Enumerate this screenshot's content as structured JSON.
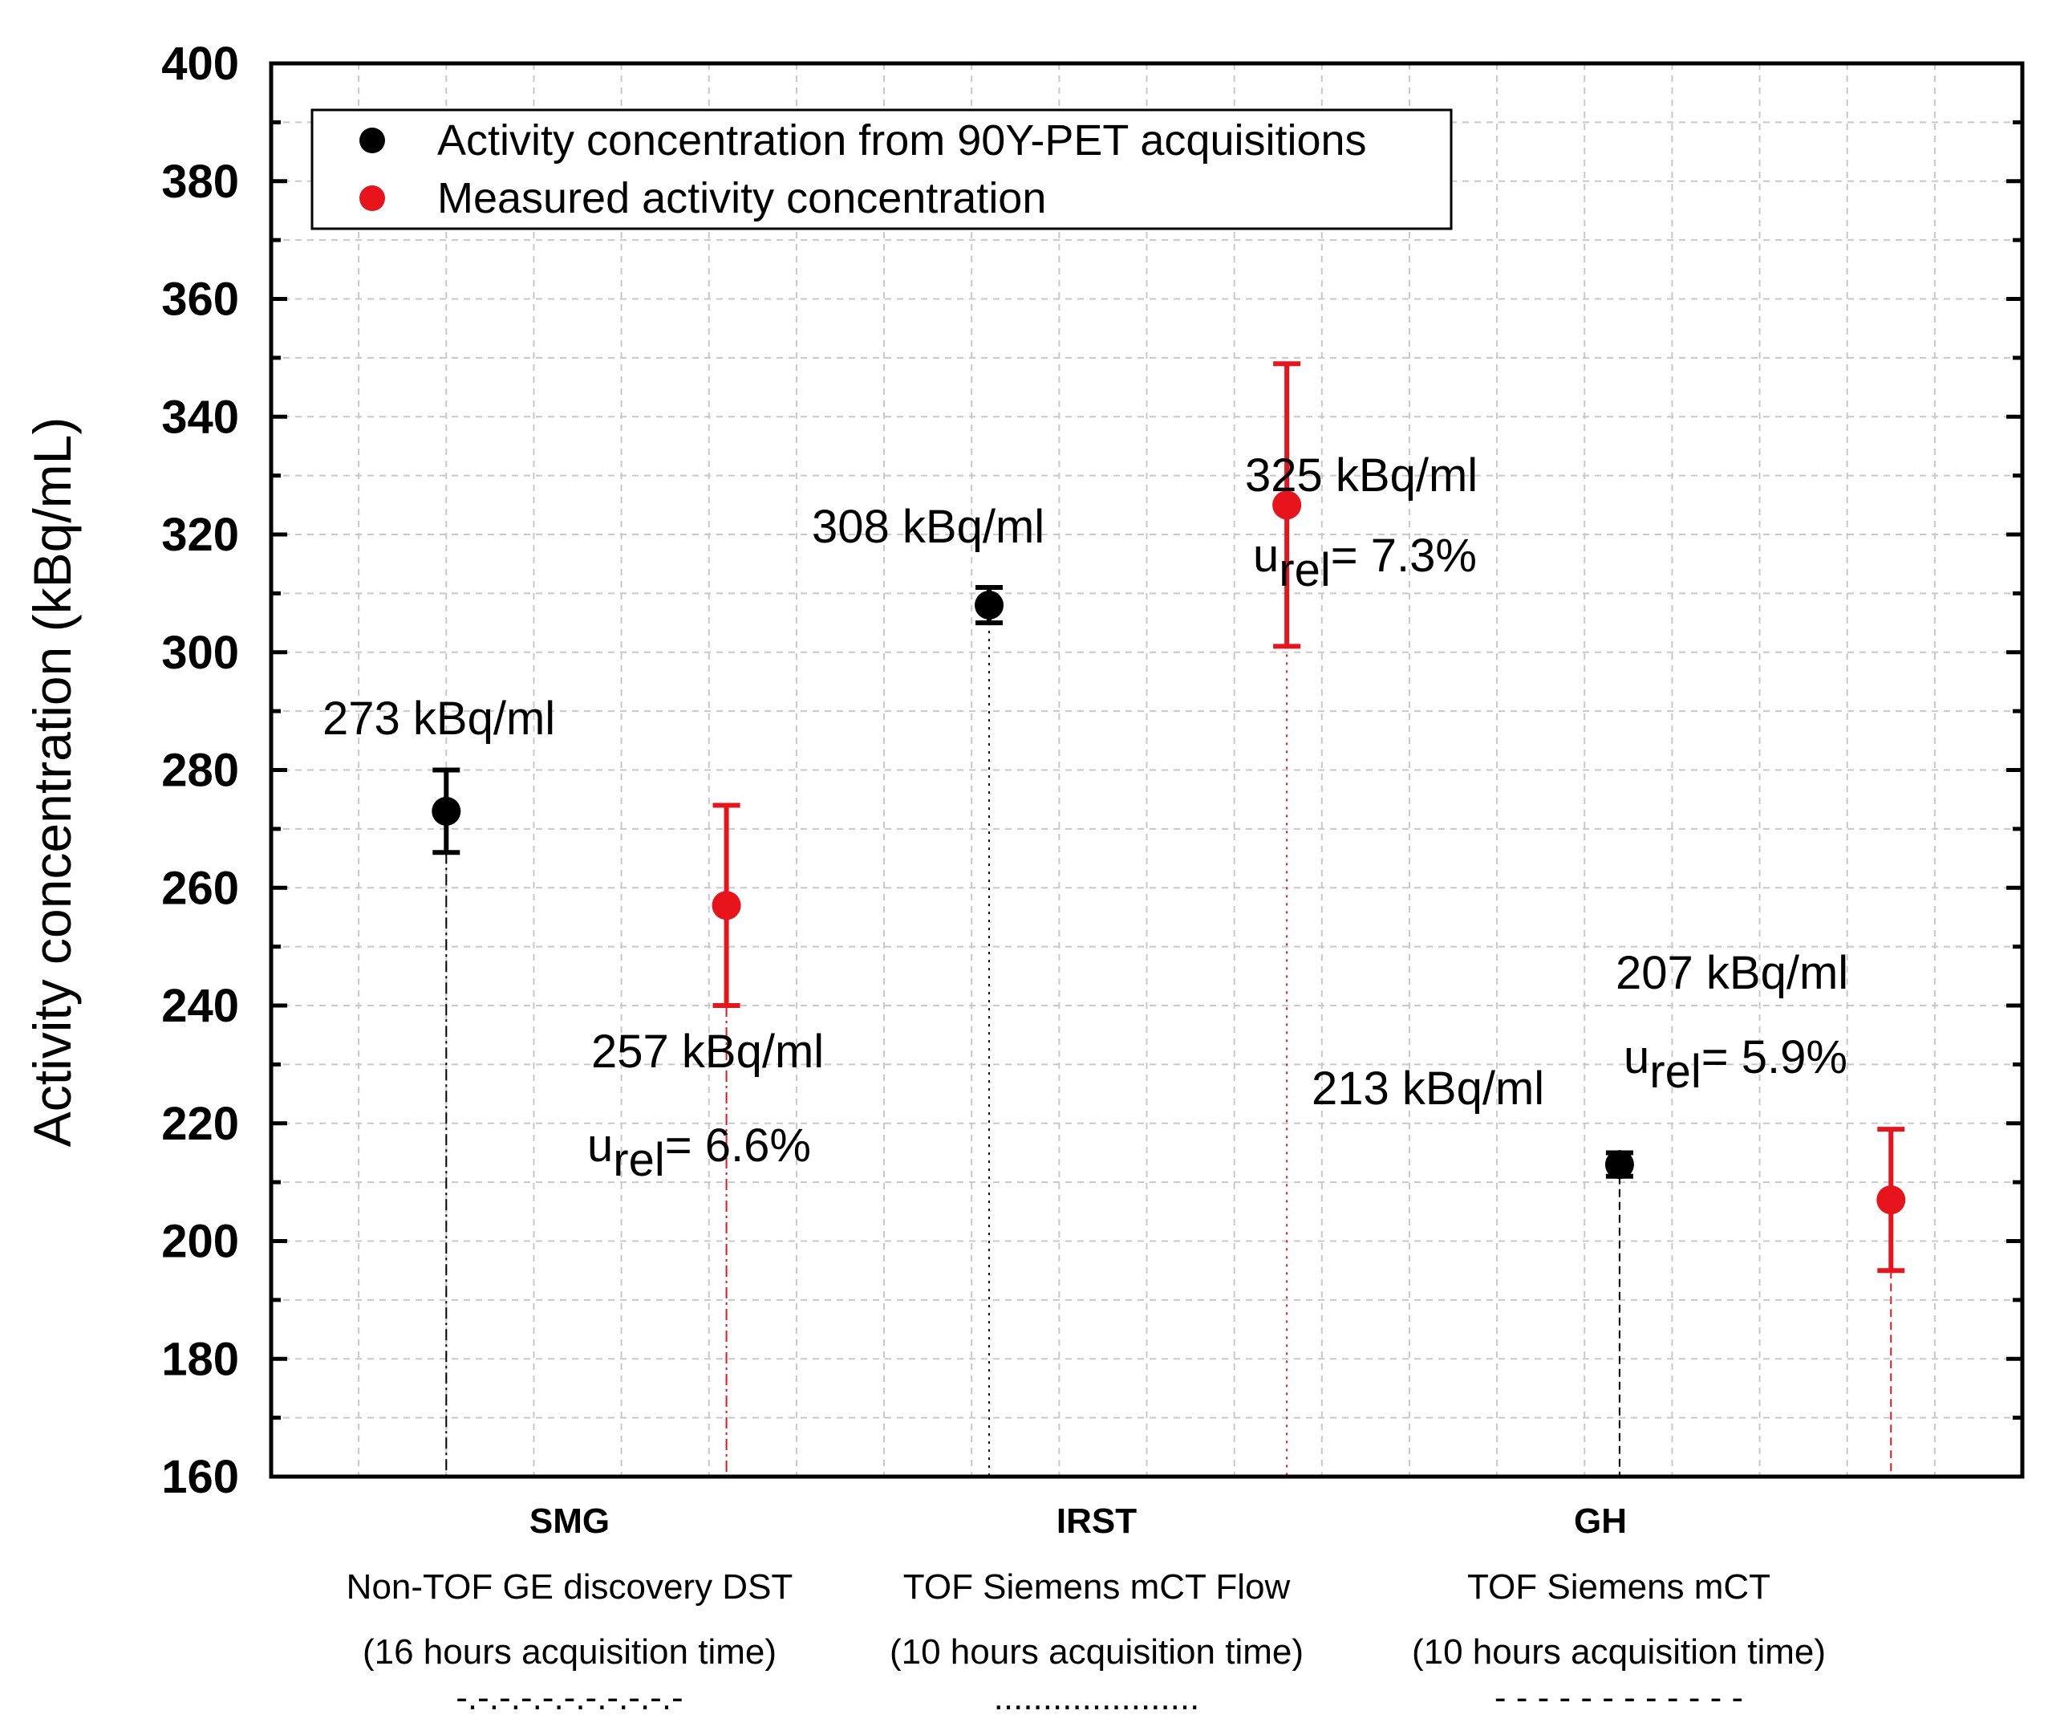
{
  "chart_data": {
    "type": "scatter",
    "title": "",
    "xlabel": "",
    "ylabel": "Activity concentration (kBq/mL)",
    "ylim": [
      160,
      400
    ],
    "ytick_step": 20,
    "grid": true,
    "legend_position": "top-left",
    "categories": [
      {
        "name": "SMG",
        "line1": "Non-TOF GE discovery DST",
        "line2": "(16 hours acquisition time)",
        "marker_line": "-.-.-.-.-.-.-.-.-.-.-"
      },
      {
        "name": "IRST",
        "line1": "TOF Siemens mCT Flow",
        "line2": "(10 hours acquisition time)",
        "marker_line": "....................."
      },
      {
        "name": "GH",
        "line1": "TOF Siemens mCT",
        "line2": "(10 hours acquisition time)",
        "marker_line": "- - - - - - - - - - - -"
      }
    ],
    "series": [
      {
        "name": "Activity concentration from 90Y-PET acquisitions",
        "color": "#000000",
        "values": [
          273,
          308,
          213
        ],
        "err_low": [
          266,
          305,
          211
        ],
        "err_high": [
          280,
          311,
          215
        ]
      },
      {
        "name": "Measured activity concentration",
        "color": "#e8141c",
        "values": [
          257,
          325,
          207
        ],
        "err_low": [
          240,
          301,
          195
        ],
        "err_high": [
          274,
          349,
          219
        ]
      }
    ],
    "annotations": [
      {
        "text": "273 kBq/ml"
      },
      {
        "text": "308 kBq/ml"
      },
      {
        "text": "213 kBq/ml"
      },
      {
        "text": "257 kBq/ml",
        "urel_sub": "rel",
        "urel_value": "= 6.6%"
      },
      {
        "text": "325 kBq/ml",
        "urel_sub": "rel",
        "urel_value": "= 7.3%"
      },
      {
        "text": "207 kBq/ml",
        "urel_sub": "rel",
        "urel_value": "= 5.9%"
      }
    ],
    "urel_prefix": "u"
  }
}
